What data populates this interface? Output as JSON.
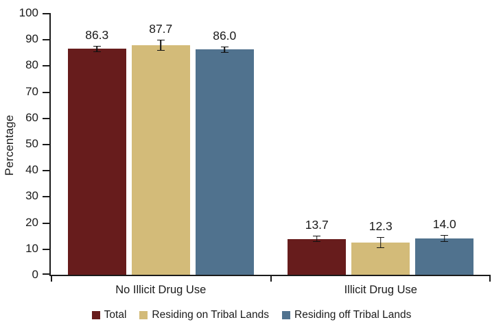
{
  "chart_data": {
    "type": "bar",
    "title": "",
    "ylabel": "Percentage",
    "ylim": [
      0,
      100
    ],
    "ytick_step": 10,
    "grid": false,
    "legend_position": "bottom",
    "error_bars": true,
    "axis_color": "#1a1a1a",
    "categories": [
      "No Illicit Drug Use",
      "Illicit Drug Use"
    ],
    "series": [
      {
        "name": "Total",
        "color": "#671c1c",
        "values": [
          86.3,
          13.7
        ],
        "errors": [
          1.2,
          1.2
        ]
      },
      {
        "name": "Residing on Tribal Lands",
        "color": "#d3bb79",
        "values": [
          87.7,
          12.3
        ],
        "errors": [
          2.2,
          2.2
        ]
      },
      {
        "name": "Residing off Tribal Lands",
        "color": "#50728e",
        "values": [
          86.0,
          14.0
        ],
        "errors": [
          1.3,
          1.3
        ]
      }
    ],
    "value_labels": [
      [
        "86.3",
        "87.7",
        "86.0"
      ],
      [
        "13.7",
        "12.3",
        "14.0"
      ]
    ]
  }
}
